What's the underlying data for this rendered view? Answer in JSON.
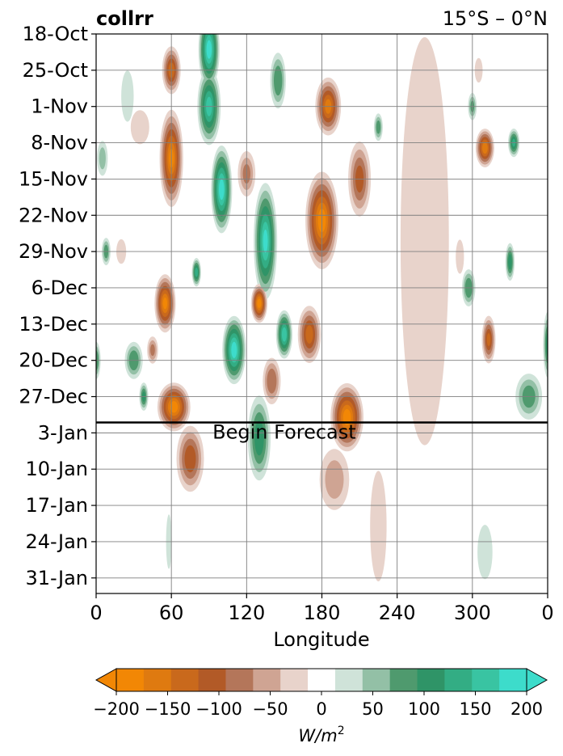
{
  "chart_data": {
    "type": "heatmap",
    "title": "collrr",
    "subtitle": "15°S – 0°N",
    "xlabel": "Longitude",
    "ylabel": "",
    "x_ticks": [
      "0",
      "60",
      "120",
      "180",
      "240",
      "300",
      "0"
    ],
    "x_tick_values": [
      0,
      60,
      120,
      180,
      240,
      300,
      360
    ],
    "xlim": [
      0,
      360
    ],
    "y_ticks": [
      "18-Oct",
      "25-Oct",
      "1-Nov",
      "8-Nov",
      "15-Nov",
      "22-Nov",
      "29-Nov",
      "6-Dec",
      "13-Dec",
      "20-Dec",
      "27-Dec",
      "3-Jan",
      "10-Jan",
      "17-Jan",
      "24-Jan",
      "31-Jan"
    ],
    "y_tick_days": [
      0,
      7,
      14,
      21,
      28,
      35,
      42,
      49,
      56,
      63,
      70,
      77,
      84,
      91,
      98,
      105
    ],
    "ylim_days": [
      0,
      108
    ],
    "grid": true,
    "forecast_line_day": 75,
    "forecast_label": "Begin Forecast",
    "colorbar": {
      "levels": [
        -200,
        -175,
        -150,
        -125,
        -100,
        -75,
        -50,
        -25,
        25,
        50,
        75,
        100,
        125,
        150,
        175,
        200
      ],
      "colors": [
        "#f28705",
        "#df7a10",
        "#c9691c",
        "#b25a27",
        "#b4765a",
        "#cfa493",
        "#e8d3cb",
        "#ffffff",
        "#cfe3d9",
        "#93c0a6",
        "#4f9a6e",
        "#2f9467",
        "#33ad84",
        "#39c4a2",
        "#3ddccb"
      ],
      "ticks": [
        "−200",
        "−150",
        "−100",
        "−50",
        "0",
        "50",
        "100",
        "150",
        "200"
      ],
      "tick_values": [
        -200,
        -150,
        -100,
        -50,
        0,
        50,
        100,
        150,
        200
      ],
      "label": "W/m²",
      "extend": "both"
    },
    "features": [
      {
        "lon": 60,
        "day": 24,
        "value": -190,
        "wlon": 10,
        "wday": 10
      },
      {
        "lon": 60,
        "day": 7,
        "value": -150,
        "wlon": 8,
        "wday": 5
      },
      {
        "lon": 55,
        "day": 52,
        "value": -190,
        "wlon": 9,
        "wday": 6
      },
      {
        "lon": 45,
        "day": 61,
        "value": -90,
        "wlon": 5,
        "wday": 3
      },
      {
        "lon": 62,
        "day": 72,
        "value": -200,
        "wlon": 14,
        "wday": 5
      },
      {
        "lon": 75,
        "day": 82,
        "value": -130,
        "wlon": 12,
        "wday": 7
      },
      {
        "lon": 35,
        "day": 18,
        "value": -60,
        "wlon": 9,
        "wday": 4
      },
      {
        "lon": 20,
        "day": 42,
        "value": -50,
        "wlon": 5,
        "wday": 3
      },
      {
        "lon": 130,
        "day": 52,
        "value": -200,
        "wlon": 7,
        "wday": 4
      },
      {
        "lon": 140,
        "day": 67,
        "value": -110,
        "wlon": 8,
        "wday": 5
      },
      {
        "lon": 120,
        "day": 27,
        "value": -90,
        "wlon": 8,
        "wday": 5
      },
      {
        "lon": 180,
        "day": 36,
        "value": -200,
        "wlon": 14,
        "wday": 10
      },
      {
        "lon": 185,
        "day": 14,
        "value": -170,
        "wlon": 11,
        "wday": 6
      },
      {
        "lon": 170,
        "day": 58,
        "value": -150,
        "wlon": 10,
        "wday": 6
      },
      {
        "lon": 200,
        "day": 74,
        "value": -200,
        "wlon": 14,
        "wday": 7
      },
      {
        "lon": 210,
        "day": 28,
        "value": -120,
        "wlon": 10,
        "wday": 8
      },
      {
        "lon": 190,
        "day": 86,
        "value": -70,
        "wlon": 14,
        "wday": 7
      },
      {
        "lon": 225,
        "day": 95,
        "value": -60,
        "wlon": 8,
        "wday": 13
      },
      {
        "lon": 310,
        "day": 22,
        "value": -180,
        "wlon": 8,
        "wday": 4
      },
      {
        "lon": 313,
        "day": 59,
        "value": -140,
        "wlon": 6,
        "wday": 5
      },
      {
        "lon": 290,
        "day": 43,
        "value": -60,
        "wlon": 4,
        "wday": 4
      },
      {
        "lon": 305,
        "day": 7,
        "value": -50,
        "wlon": 4,
        "wday": 3
      },
      {
        "lon": 262,
        "day": 40,
        "value": -30,
        "wlon": 22,
        "wday": 45
      },
      {
        "lon": 90,
        "day": 3,
        "value": 200,
        "wlon": 9,
        "wday": 8
      },
      {
        "lon": 90,
        "day": 14,
        "value": 170,
        "wlon": 10,
        "wday": 8
      },
      {
        "lon": 100,
        "day": 30,
        "value": 200,
        "wlon": 9,
        "wday": 9
      },
      {
        "lon": 135,
        "day": 40,
        "value": 190,
        "wlon": 10,
        "wday": 12
      },
      {
        "lon": 110,
        "day": 61,
        "value": 200,
        "wlon": 10,
        "wday": 7
      },
      {
        "lon": 150,
        "day": 58,
        "value": 180,
        "wlon": 7,
        "wday": 5
      },
      {
        "lon": 130,
        "day": 78,
        "value": 130,
        "wlon": 10,
        "wday": 9
      },
      {
        "lon": 145,
        "day": 9,
        "value": 110,
        "wlon": 7,
        "wday": 6
      },
      {
        "lon": 225,
        "day": 18,
        "value": 100,
        "wlon": 4,
        "wday": 3
      },
      {
        "lon": 80,
        "day": 46,
        "value": 150,
        "wlon": 4,
        "wday": 3
      },
      {
        "lon": 25,
        "day": 12,
        "value": 60,
        "wlon": 6,
        "wday": 6
      },
      {
        "lon": 5,
        "day": 24,
        "value": 70,
        "wlon": 5,
        "wday": 4
      },
      {
        "lon": 8,
        "day": 42,
        "value": 100,
        "wlon": 4,
        "wday": 3
      },
      {
        "lon": 30,
        "day": 63,
        "value": 110,
        "wlon": 8,
        "wday": 4
      },
      {
        "lon": 38,
        "day": 70,
        "value": 120,
        "wlon": 4,
        "wday": 3
      },
      {
        "lon": 0,
        "day": 63,
        "value": 110,
        "wlon": 4,
        "wday": 4
      },
      {
        "lon": 333,
        "day": 21,
        "value": 140,
        "wlon": 5,
        "wday": 3
      },
      {
        "lon": 330,
        "day": 44,
        "value": 130,
        "wlon": 4,
        "wday": 4
      },
      {
        "lon": 297,
        "day": 49,
        "value": 110,
        "wlon": 6,
        "wday": 4
      },
      {
        "lon": 345,
        "day": 70,
        "value": 100,
        "wlon": 12,
        "wday": 5
      },
      {
        "lon": 300,
        "day": 14,
        "value": 90,
        "wlon": 4,
        "wday": 3
      },
      {
        "lon": 360,
        "day": 60,
        "value": 120,
        "wlon": 4,
        "wday": 7
      },
      {
        "lon": 310,
        "day": 100,
        "value": 40,
        "wlon": 8,
        "wday": 7
      },
      {
        "lon": 58,
        "day": 98,
        "value": 40,
        "wlon": 3,
        "wday": 7
      }
    ]
  }
}
